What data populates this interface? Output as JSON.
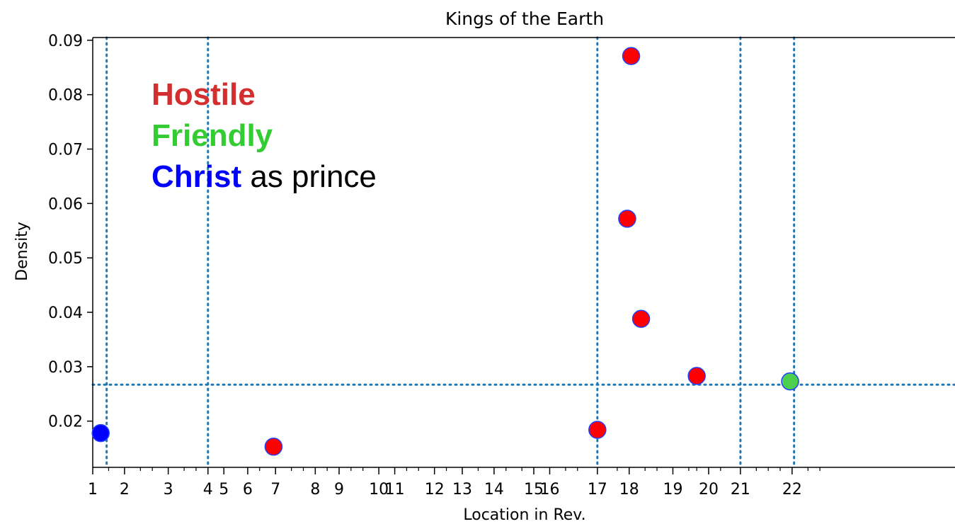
{
  "chart_data": {
    "type": "scatter",
    "title": "Kings of the Earth",
    "xlabel": "Location in Rev.",
    "ylabel": "Density",
    "xlim": [
      1,
      22.7
    ],
    "ylim": [
      0.0115,
      0.0905
    ],
    "x_ticks": [
      {
        "v": 1,
        "label": "1"
      },
      {
        "v": 1.8,
        "label": "2"
      },
      {
        "v": 2.9,
        "label": "3"
      },
      {
        "v": 3.9,
        "label": "4"
      },
      {
        "v": 4.3,
        "label": "5"
      },
      {
        "v": 4.9,
        "label": "6"
      },
      {
        "v": 5.6,
        "label": "7"
      },
      {
        "v": 6.6,
        "label": "8"
      },
      {
        "v": 7.2,
        "label": "9"
      },
      {
        "v": 8.2,
        "label": "10"
      },
      {
        "v": 8.6,
        "label": "11"
      },
      {
        "v": 9.6,
        "label": "12"
      },
      {
        "v": 10.3,
        "label": "13"
      },
      {
        "v": 11.1,
        "label": "14"
      },
      {
        "v": 12.1,
        "label": "15"
      },
      {
        "v": 12.5,
        "label": "16"
      },
      {
        "v": 13.7,
        "label": "17"
      },
      {
        "v": 14.5,
        "label": "18"
      },
      {
        "v": 15.6,
        "label": "19"
      },
      {
        "v": 16.5,
        "label": "20"
      },
      {
        "v": 17.3,
        "label": "21"
      },
      {
        "v": 18.6,
        "label": "22"
      }
    ],
    "x_minor_ticks": [
      1.4,
      2.2,
      2.5,
      3.3,
      3.6,
      5.2,
      6.0,
      6.3,
      6.9,
      7.5,
      7.8,
      8.9,
      9.2,
      9.9,
      10.7,
      11.4,
      11.8,
      12.9,
      13.2,
      14.2,
      14.9,
      15.2,
      16.0,
      16.2,
      16.8,
      17.7,
      18.0,
      18.3,
      19.0,
      19.3
    ],
    "y_ticks": [
      0.02,
      0.03,
      0.04,
      0.05,
      0.06,
      0.07,
      0.08,
      0.09
    ],
    "y_tick_labels": [
      "0.02",
      "0.03",
      "0.04",
      "0.05",
      "0.06",
      "0.07",
      "0.08",
      "0.09"
    ],
    "points": [
      {
        "x": 1.2,
        "y": 0.0178,
        "type": "Christ"
      },
      {
        "x": 5.55,
        "y": 0.0153,
        "type": "Hostile"
      },
      {
        "x": 13.7,
        "y": 0.0184,
        "type": "Hostile"
      },
      {
        "x": 14.45,
        "y": 0.0572,
        "type": "Hostile"
      },
      {
        "x": 14.55,
        "y": 0.0871,
        "type": "Hostile"
      },
      {
        "x": 14.8,
        "y": 0.0388,
        "type": "Hostile"
      },
      {
        "x": 16.2,
        "y": 0.0283,
        "type": "Hostile"
      },
      {
        "x": 18.55,
        "y": 0.0273,
        "type": "Friendly"
      }
    ],
    "vlines": [
      1.35,
      3.9,
      13.7,
      17.3,
      18.65
    ],
    "hline": 0.0267,
    "grid": false,
    "legend": {
      "position": "top-left",
      "entries": [
        {
          "label": "Hostile",
          "suffix": "",
          "color": "#d32f2f"
        },
        {
          "label": "Friendly",
          "suffix": "",
          "color": "#33cc33"
        },
        {
          "label": "Christ",
          "suffix": " as prince",
          "color": "#0000ff"
        }
      ]
    },
    "colors": {
      "Hostile": "#ff0000",
      "Friendly": "#4ccf4c",
      "Christ": "#0000ff",
      "point_edge": "#1f3fff",
      "guide_line": "#1f77b4"
    }
  }
}
